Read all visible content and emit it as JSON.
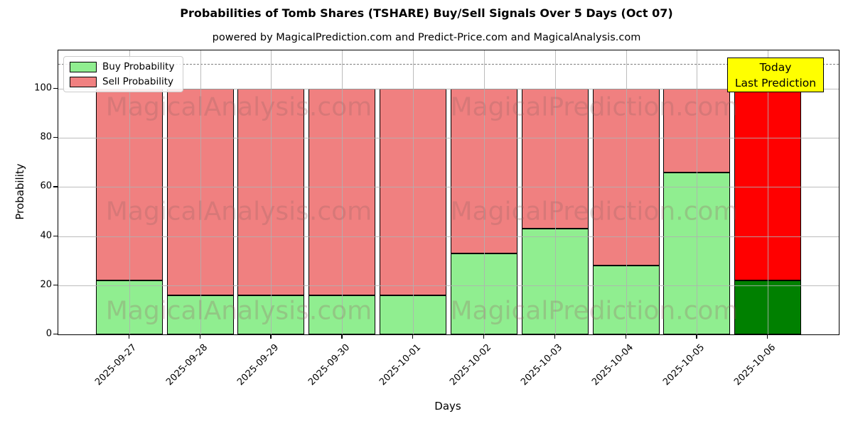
{
  "chart_data": {
    "type": "bar",
    "stacked": true,
    "title": "Probabilities of Tomb Shares (TSHARE) Buy/Sell Signals Over 5 Days (Oct 07)",
    "subtitle": "powered by MagicalPrediction.com and Predict-Price.com and MagicalAnalysis.com",
    "xlabel": "Days",
    "ylabel": "Probability",
    "categories": [
      "2025-09-27",
      "2025-09-28",
      "2025-09-29",
      "2025-09-30",
      "2025-10-01",
      "2025-10-02",
      "2025-10-03",
      "2025-10-04",
      "2025-10-05",
      "2025-10-06"
    ],
    "series": [
      {
        "name": "Buy Probability",
        "color": "#90ee90",
        "values": [
          22,
          16,
          16,
          16,
          16,
          33,
          43,
          28,
          66,
          22
        ]
      },
      {
        "name": "Sell Probability",
        "color": "#f08080",
        "values": [
          78,
          84,
          84,
          84,
          84,
          67,
          57,
          72,
          34,
          78
        ]
      }
    ],
    "today_bar_colors": {
      "buy": "#008000",
      "sell": "#ff0000"
    },
    "yticks": [
      0,
      20,
      40,
      60,
      80,
      100
    ],
    "ylim": [
      0,
      115.6
    ],
    "dashed_line_y": 110,
    "grid": true,
    "legend_position": "upper left",
    "annotation": {
      "line1": "Today",
      "line2": "Last Prediction",
      "bg_color": "#ffff00"
    },
    "watermarks": {
      "left": "MagicalAnalysis.com",
      "right": "MagicalPrediction.com"
    }
  }
}
